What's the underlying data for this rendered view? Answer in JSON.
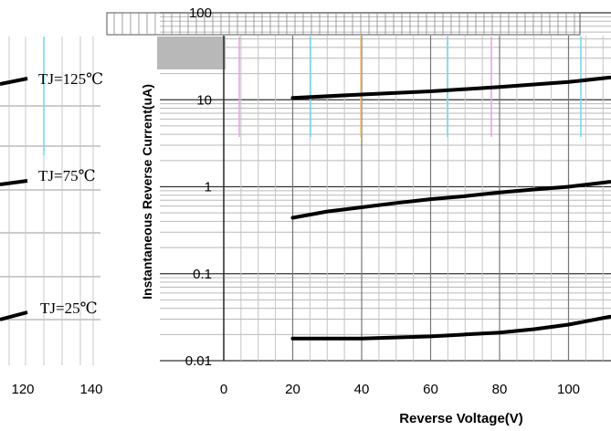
{
  "chart_data": [
    {
      "type": "line",
      "xlabel": "Reverse Voltage(V)",
      "ylabel": "Instantaneous Reverse Current(uA)",
      "x_ticks": [
        0,
        20,
        40,
        60,
        80,
        100
      ],
      "x_tick_labels": [
        "0",
        "20",
        "40",
        "60",
        "80",
        "100"
      ],
      "xlim": [
        0,
        112
      ],
      "y_scale": "log",
      "y_ticks": [
        0.01,
        0.1,
        1,
        10,
        100
      ],
      "y_tick_labels": [
        "0.01",
        "0.1",
        "1",
        "10",
        "100"
      ],
      "ylim": [
        0.01,
        100
      ],
      "grid": true,
      "series": [
        {
          "x": [
            20,
            40,
            60,
            80,
            100,
            112
          ],
          "y": [
            10.5,
            11.5,
            12.5,
            14,
            16,
            18
          ]
        },
        {
          "x": [
            20,
            30,
            40,
            50,
            60,
            70,
            80,
            90,
            100,
            112
          ],
          "y": [
            0.44,
            0.52,
            0.58,
            0.65,
            0.72,
            0.78,
            0.86,
            0.93,
            1.0,
            1.14
          ]
        },
        {
          "x": [
            20,
            40,
            60,
            70,
            80,
            90,
            100,
            112
          ],
          "y": [
            0.018,
            0.018,
            0.019,
            0.02,
            0.021,
            0.023,
            0.026,
            0.032
          ]
        }
      ],
      "left_panel": {
        "curve_labels": [
          "TJ=125℃",
          "TJ=75℃",
          "TJ=25℃"
        ],
        "x_tick_labels": [
          "120",
          "140"
        ]
      }
    }
  ]
}
